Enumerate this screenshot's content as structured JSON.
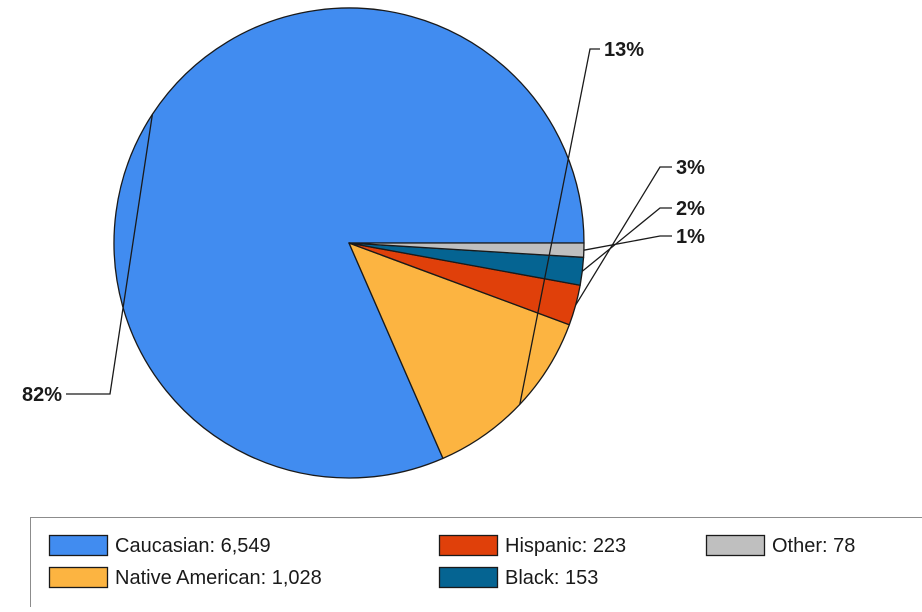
{
  "chart_data": {
    "type": "pie",
    "title": "",
    "start_angle_deg": 0,
    "direction": "counterclockwise",
    "legend_position": "bottom",
    "slices": [
      {
        "name": "Caucasian",
        "value": 6549,
        "value_label": "6,549",
        "percent_label": "82%",
        "color": "#418cf0"
      },
      {
        "name": "Native American",
        "value": 1028,
        "value_label": "1,028",
        "percent_label": "13%",
        "color": "#fcb441"
      },
      {
        "name": "Hispanic",
        "value": 223,
        "value_label": "223",
        "percent_label": "3%",
        "color": "#e0400a"
      },
      {
        "name": "Black",
        "value": 153,
        "value_label": "153",
        "percent_label": "2%",
        "color": "#056492"
      },
      {
        "name": "Other",
        "value": 78,
        "value_label": "78",
        "percent_label": "1%",
        "color": "#bfbfbf"
      }
    ]
  }
}
